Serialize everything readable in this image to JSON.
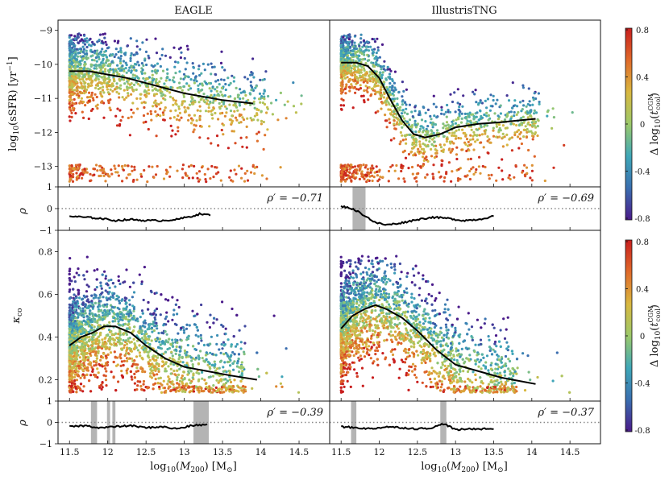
{
  "figure": {
    "columns": [
      "EAGLE",
      "IllustrisTNG"
    ],
    "colorbar_label": "Δ log10(t_cool^CGM)",
    "colorbar_ticks": [
      "0.8",
      "0.4",
      "0",
      "-0.4",
      "-0.8"
    ],
    "colormap": [
      "#4a1a8a",
      "#3a6fb0",
      "#3fa8b8",
      "#9cc96a",
      "#d9b840",
      "#e06a2a",
      "#c81e1e"
    ],
    "median_color": "#000000",
    "significance_color": "#b4b4b4"
  },
  "chart_data": [
    {
      "id": "eagle-ssfr",
      "type": "scatter",
      "title": "EAGLE",
      "xlabel": "",
      "ylabel": "log10(sSFR) [yr^-1]",
      "xlim": [
        11.35,
        14.9
      ],
      "ylim": [
        -13.6,
        -8.7
      ],
      "yticks": [
        "-9",
        "-10",
        "-11",
        "-12",
        "-13"
      ],
      "median": {
        "x": [
          11.5,
          11.75,
          12.0,
          12.25,
          12.5,
          12.75,
          13.0,
          13.25,
          13.5,
          13.9
        ],
        "y": [
          -10.2,
          -10.2,
          -10.3,
          -10.4,
          -10.55,
          -10.7,
          -10.85,
          -10.95,
          -11.05,
          -11.15
        ]
      }
    },
    {
      "id": "tng-ssfr",
      "type": "scatter",
      "title": "IllustrisTNG",
      "xlim": [
        11.35,
        14.9
      ],
      "ylim": [
        -13.6,
        -8.7
      ],
      "median": {
        "x": [
          11.5,
          11.7,
          11.85,
          12.0,
          12.15,
          12.3,
          12.45,
          12.6,
          12.8,
          13.0,
          13.3,
          13.6,
          14.05
        ],
        "y": [
          -9.95,
          -9.95,
          -10.05,
          -10.4,
          -11.05,
          -11.65,
          -12.05,
          -12.15,
          -12.05,
          -11.85,
          -11.75,
          -11.7,
          -11.6
        ]
      }
    },
    {
      "id": "eagle-rho-ssfr",
      "type": "line",
      "ylabel": "ρ",
      "yticks": [
        "1",
        "0",
        "-1"
      ],
      "ylim": [
        -1,
        1
      ],
      "rho_prime": "ρ′ = −0.71",
      "x": [
        11.5,
        11.7,
        11.9,
        12.1,
        12.3,
        12.5,
        12.7,
        12.9,
        13.1,
        13.2,
        13.35
      ],
      "y": [
        -0.35,
        -0.4,
        -0.45,
        -0.55,
        -0.5,
        -0.55,
        -0.55,
        -0.5,
        -0.35,
        -0.25,
        -0.3
      ],
      "bands": []
    },
    {
      "id": "tng-rho-ssfr",
      "type": "line",
      "rho_prime": "ρ′ = −0.69",
      "x": [
        11.5,
        11.6,
        11.7,
        11.8,
        11.95,
        12.1,
        12.3,
        12.5,
        12.7,
        12.9,
        13.1,
        13.3,
        13.5
      ],
      "y": [
        0.1,
        0.05,
        -0.1,
        -0.3,
        -0.65,
        -0.75,
        -0.65,
        -0.5,
        -0.4,
        -0.45,
        -0.55,
        -0.5,
        -0.35
      ],
      "bands": [
        [
          11.65,
          11.82
        ]
      ]
    },
    {
      "id": "eagle-kappa",
      "type": "scatter",
      "xlabel": "",
      "ylabel": "κ_co",
      "xlim": [
        11.35,
        14.9
      ],
      "ylim": [
        0.1,
        0.9
      ],
      "yticks": [
        "0.8",
        "0.6",
        "0.4",
        "0.2"
      ],
      "median": {
        "x": [
          11.5,
          11.65,
          11.8,
          11.95,
          12.1,
          12.3,
          12.5,
          12.75,
          13.0,
          13.3,
          13.6,
          13.95
        ],
        "y": [
          0.36,
          0.4,
          0.42,
          0.45,
          0.45,
          0.42,
          0.36,
          0.3,
          0.26,
          0.24,
          0.22,
          0.2
        ]
      }
    },
    {
      "id": "tng-kappa",
      "type": "scatter",
      "xlim": [
        11.35,
        14.9
      ],
      "ylim": [
        0.1,
        0.9
      ],
      "median": {
        "x": [
          11.5,
          11.65,
          11.8,
          11.95,
          12.1,
          12.3,
          12.5,
          12.75,
          13.0,
          13.3,
          13.6,
          14.05
        ],
        "y": [
          0.44,
          0.5,
          0.53,
          0.55,
          0.53,
          0.49,
          0.43,
          0.34,
          0.27,
          0.24,
          0.21,
          0.18
        ]
      }
    },
    {
      "id": "eagle-rho-kappa",
      "type": "line",
      "ylabel": "ρ",
      "yticks": [
        "1",
        "0",
        "-1"
      ],
      "ylim": [
        -1,
        1
      ],
      "rho_prime": "ρ′ = −0.39",
      "xlabel": "log10(M200) [M⊙]",
      "xticks": [
        "11.5",
        "12",
        "12.5",
        "13",
        "13.5",
        "14",
        "14.5"
      ],
      "x": [
        11.5,
        11.7,
        11.9,
        12.1,
        12.3,
        12.5,
        12.7,
        12.9,
        13.1,
        13.3
      ],
      "y": [
        -0.2,
        -0.15,
        -0.25,
        -0.2,
        -0.15,
        -0.25,
        -0.2,
        -0.3,
        -0.15,
        -0.1
      ],
      "bands": [
        [
          11.78,
          11.86
        ],
        [
          11.99,
          12.03
        ],
        [
          12.06,
          12.1
        ],
        [
          13.12,
          13.32
        ]
      ]
    },
    {
      "id": "tng-rho-kappa",
      "type": "line",
      "rho_prime": "ρ′ = −0.37",
      "xlabel": "log10(M200) [M⊙]",
      "xticks": [
        "11.5",
        "12",
        "12.5",
        "13",
        "13.5",
        "14",
        "14.5"
      ],
      "x": [
        11.5,
        11.7,
        11.9,
        12.1,
        12.3,
        12.5,
        12.7,
        12.85,
        13.0,
        13.2,
        13.5
      ],
      "y": [
        -0.2,
        -0.25,
        -0.3,
        -0.2,
        -0.25,
        -0.3,
        -0.25,
        -0.05,
        -0.35,
        -0.3,
        -0.3
      ],
      "bands": [
        [
          11.63,
          11.7
        ],
        [
          12.8,
          12.88
        ]
      ]
    }
  ]
}
